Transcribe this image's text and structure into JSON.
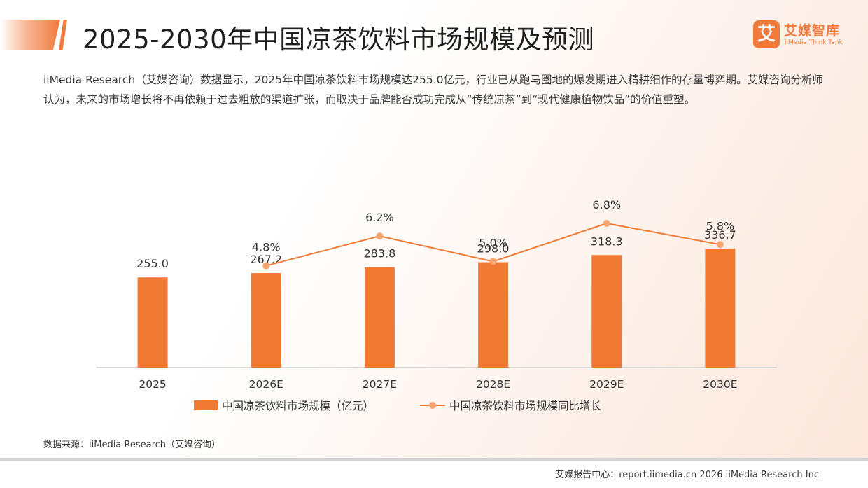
{
  "header": {
    "title": "2025-2030年中国凉茶饮料市场规模及预测",
    "logo_mark": "艾",
    "logo_name": "艾媒智库",
    "logo_sub": "iiMedia Think Tank"
  },
  "intro": "iiMedia Research（艾媒咨询）数据显示，2025年中国凉茶饮料市场规模达255.0亿元，行业已从跑马圈地的爆发期进入精耕细作的存量博弈期。艾媒咨询分析师认为，未来的市场增长将不再依赖于过去粗放的渠道扩张，而取决于品牌能否成功完成从“传统凉茶”到“现代健康植物饮品”的价值重塑。",
  "chart_data": {
    "type": "bar",
    "categories": [
      "2025",
      "2026E",
      "2027E",
      "2028E",
      "2029E",
      "2030E"
    ],
    "series": [
      {
        "name": "中国凉茶饮料市场规模（亿元）",
        "type": "bar",
        "axis": "left",
        "values": [
          255.0,
          267.2,
          283.8,
          298.0,
          318.3,
          336.7
        ],
        "labels": [
          "255.0",
          "267.2",
          "283.8",
          "298.0",
          "318.3",
          "336.7"
        ],
        "color": "#f07a33"
      },
      {
        "name": "中国凉茶饮料市场规模同比增长",
        "type": "line",
        "axis": "right",
        "values": [
          null,
          4.8,
          6.2,
          5.0,
          6.8,
          5.8
        ],
        "labels": [
          "",
          "4.8%",
          "6.2%",
          "5.0%",
          "6.8%",
          "5.8%"
        ],
        "color": "#f07a33",
        "marker_color": "#f5a46f"
      }
    ],
    "yticks": [
      "0.0",
      "100.0",
      "200.0",
      "300.0",
      "400.0",
      "500.0",
      "600.0"
    ],
    "ylim": [
      0,
      600
    ],
    "y2lim": [
      0,
      10
    ],
    "legend_position": "bottom",
    "grid": false
  },
  "source": "数据来源：iiMedia Research（艾媒咨询）",
  "footer": "艾媒报告中心：report.iimedia.cn   2026 iiMedia Research Inc",
  "colors": {
    "accent": "#f07a3c",
    "bar": "#f07a33",
    "marker": "#f5a46f",
    "axis_tick_text": "#ffffff",
    "text": "#333333"
  }
}
